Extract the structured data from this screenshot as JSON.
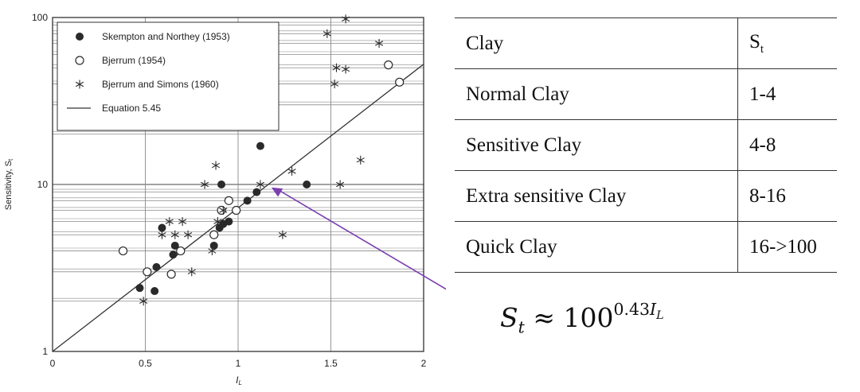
{
  "chart_data": {
    "type": "scatter",
    "title": "",
    "xlabel": "I_L",
    "ylabel": "Sensitivity, S_t",
    "x_scale": "linear",
    "y_scale": "log",
    "xlim": [
      0,
      2
    ],
    "ylim": [
      1,
      100
    ],
    "x_ticks": [
      0,
      0.5,
      1,
      1.5,
      2
    ],
    "y_ticks": [
      1,
      10,
      100
    ],
    "x_tick_labels": [
      "0",
      "0.5",
      "1",
      "1.5",
      "2"
    ],
    "y_tick_labels": [
      "1",
      "10",
      "100"
    ],
    "grid": true,
    "legend_position": "top-left",
    "series": [
      {
        "name": "Skempton and Northey (1953)",
        "marker": "filled-circle",
        "x": [
          0.47,
          0.55,
          0.56,
          0.59,
          0.65,
          0.66,
          0.87,
          0.9,
          0.91,
          0.95,
          1.05,
          1.1,
          1.12,
          1.37,
          0.92
        ],
        "y": [
          2.4,
          2.3,
          3.2,
          5.5,
          3.8,
          4.3,
          4.3,
          5.5,
          10,
          6,
          8,
          9,
          17,
          10,
          5.8
        ]
      },
      {
        "name": "Bjerrum (1954)",
        "marker": "open-circle",
        "x": [
          0.38,
          0.51,
          0.64,
          0.69,
          0.87,
          0.91,
          0.95,
          0.99,
          1.81,
          1.87
        ],
        "y": [
          4,
          3,
          2.9,
          4,
          5,
          7,
          8,
          7,
          52,
          41
        ]
      },
      {
        "name": "Bjerrum and Simons (1960)",
        "marker": "asterisk",
        "x": [
          0.49,
          0.59,
          0.63,
          0.66,
          0.7,
          0.73,
          0.75,
          0.82,
          0.86,
          0.88,
          0.89,
          0.92,
          1.12,
          1.24,
          1.29,
          1.48,
          1.52,
          1.53,
          1.58,
          1.58,
          1.76,
          1.55,
          1.66
        ],
        "y": [
          2,
          5,
          6,
          5,
          6,
          5,
          3,
          10,
          4,
          13,
          6,
          7,
          10,
          5,
          12,
          80,
          40,
          50,
          98,
          49,
          70,
          10,
          14
        ]
      },
      {
        "name": "Equation 5.45",
        "type": "line",
        "x": [
          0,
          2
        ],
        "y": [
          1,
          52.5
        ]
      }
    ]
  },
  "table": {
    "header": {
      "col1": "Clay",
      "col2_base": "S",
      "col2_sub": "t"
    },
    "rows": [
      {
        "clay": "Normal Clay",
        "st": "1-4"
      },
      {
        "clay": "Sensitive Clay",
        "st": "4-8"
      },
      {
        "clay": "Extra sensitive Clay",
        "st": "8-16"
      },
      {
        "clay": "Quick Clay",
        "st": "16->100"
      }
    ]
  },
  "formula": {
    "var": "S",
    "var_sub": "t",
    "approx": "≈",
    "base": "100",
    "exponent": "0.43",
    "exp_var": "I",
    "exp_var_sub": "L"
  },
  "colors": {
    "grid": "#8a8a8a",
    "axis": "#222222",
    "marker": "#2a2a2a",
    "arrow": "#7a3fb0"
  }
}
